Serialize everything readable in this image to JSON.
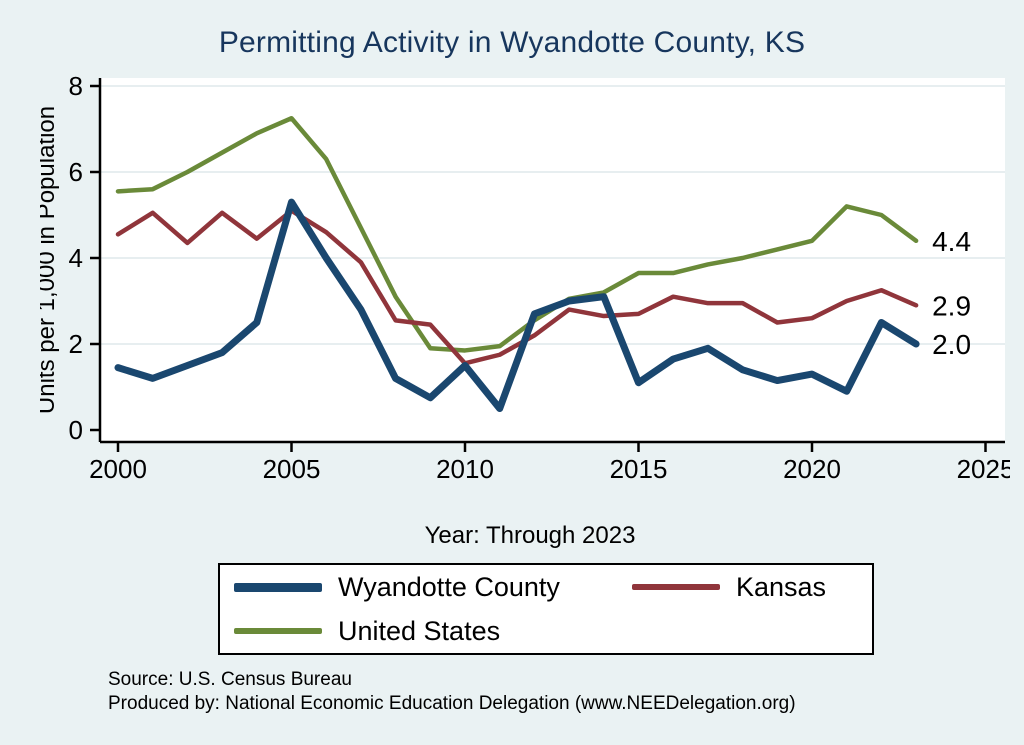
{
  "title": "Permitting Activity in Wyandotte County, KS",
  "colors": {
    "background": "#eaf2f3",
    "plot_background": "#ffffff",
    "title": "#17365d",
    "axis": "#000000",
    "gridline": "#dfe9eb"
  },
  "chart_data": {
    "type": "line",
    "title": "Permitting Activity in Wyandotte County, KS",
    "xlabel": "Year: Through 2023",
    "ylabel": "Units per 1,000 in Population",
    "xlim": [
      2000,
      2025
    ],
    "ylim": [
      0,
      8
    ],
    "xticks": [
      2000,
      2005,
      2010,
      2015,
      2020,
      2025
    ],
    "yticks": [
      0,
      2,
      4,
      6,
      8
    ],
    "grid": true,
    "legend_position": "bottom",
    "x": [
      2000,
      2001,
      2002,
      2003,
      2004,
      2005,
      2006,
      2007,
      2008,
      2009,
      2010,
      2011,
      2012,
      2013,
      2014,
      2015,
      2016,
      2017,
      2018,
      2019,
      2020,
      2021,
      2022,
      2023
    ],
    "series": [
      {
        "name": "Wyandotte County",
        "color": "#1a476f",
        "width": 7,
        "end_label": "2.0",
        "values": [
          1.45,
          1.2,
          1.5,
          1.8,
          2.5,
          5.3,
          4.0,
          2.8,
          1.2,
          0.75,
          1.5,
          0.5,
          2.7,
          3.0,
          3.1,
          1.1,
          1.65,
          1.9,
          1.4,
          1.15,
          1.3,
          0.9,
          2.5,
          2.0
        ]
      },
      {
        "name": "Kansas",
        "color": "#90353b",
        "width": 4.5,
        "end_label": "2.9",
        "values": [
          4.55,
          5.05,
          4.35,
          5.05,
          4.45,
          5.1,
          4.6,
          3.9,
          2.55,
          2.45,
          1.55,
          1.75,
          2.2,
          2.8,
          2.65,
          2.7,
          3.1,
          2.95,
          2.95,
          2.5,
          2.6,
          3.0,
          3.25,
          2.9
        ]
      },
      {
        "name": "United States",
        "color": "#6a8a39",
        "width": 4.5,
        "end_label": "4.4",
        "values": [
          5.55,
          5.6,
          6.0,
          6.45,
          6.9,
          7.25,
          6.3,
          4.7,
          3.1,
          1.9,
          1.85,
          1.95,
          2.55,
          3.05,
          3.2,
          3.65,
          3.65,
          3.85,
          4.0,
          4.2,
          4.4,
          5.2,
          5.0,
          4.4
        ]
      }
    ]
  },
  "notes": {
    "line1": "Source: U.S. Census Bureau",
    "line2": "Produced by: National Economic Education Delegation (www.NEEDelegation.org)"
  }
}
